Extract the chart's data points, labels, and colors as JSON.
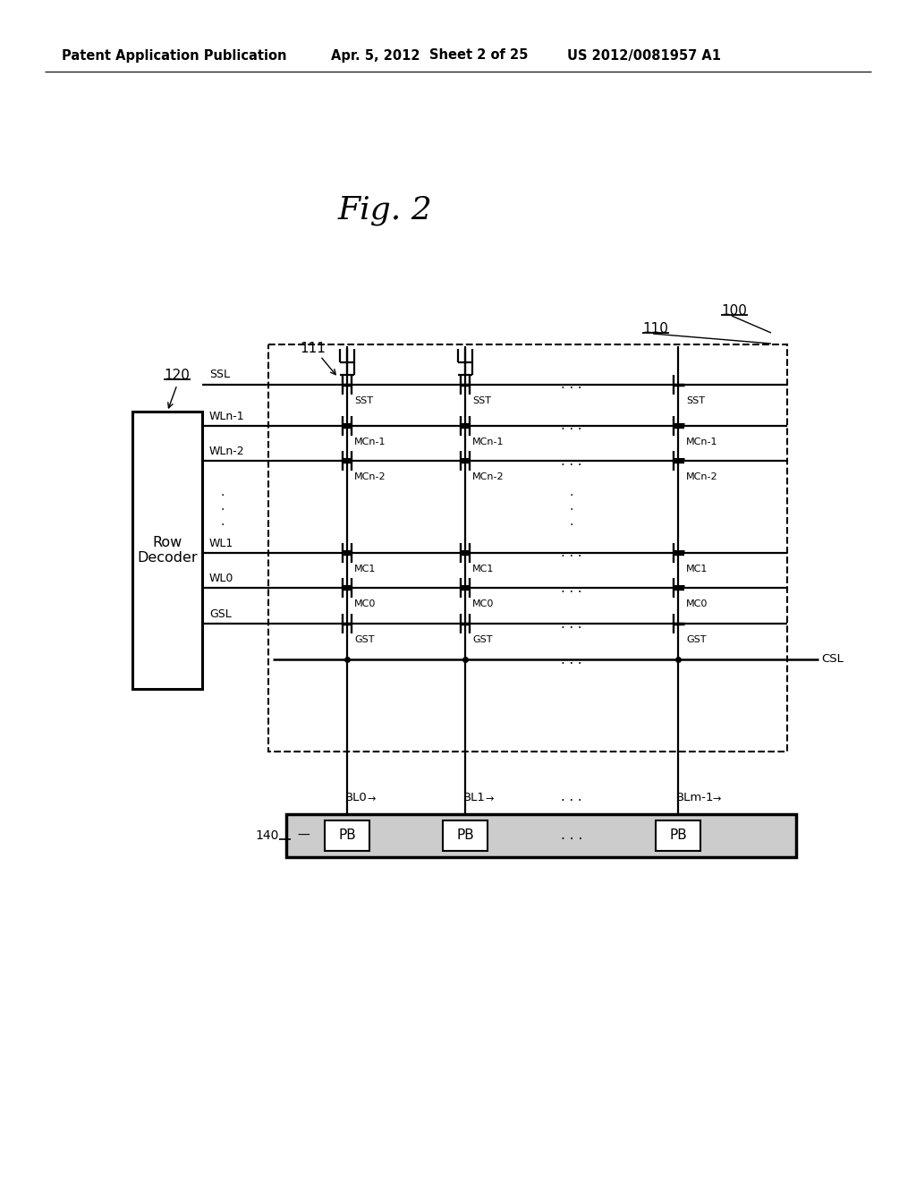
{
  "bg_color": "#ffffff",
  "header_text1": "Patent Application Publication",
  "header_text2": "Apr. 5, 2012",
  "header_text3": "Sheet 2 of 25",
  "header_text4": "US 2012/0081957 A1",
  "fig_title": "Fig. 2",
  "label_100": "100",
  "label_120": "120",
  "label_111": "111",
  "label_110": "110",
  "label_140": "140",
  "row_decoder_text": "Row\nDecoder",
  "wl_labels": [
    "SSL",
    "WLn-1",
    "WLn-2",
    "WL1",
    "WL0",
    "GSL"
  ],
  "bl_labels": [
    "BL0",
    "BL1",
    "BLm-1"
  ],
  "csl_label": "CSL",
  "pb_labels": [
    "PB",
    "PB",
    "PB"
  ],
  "dots_label": ". . ."
}
